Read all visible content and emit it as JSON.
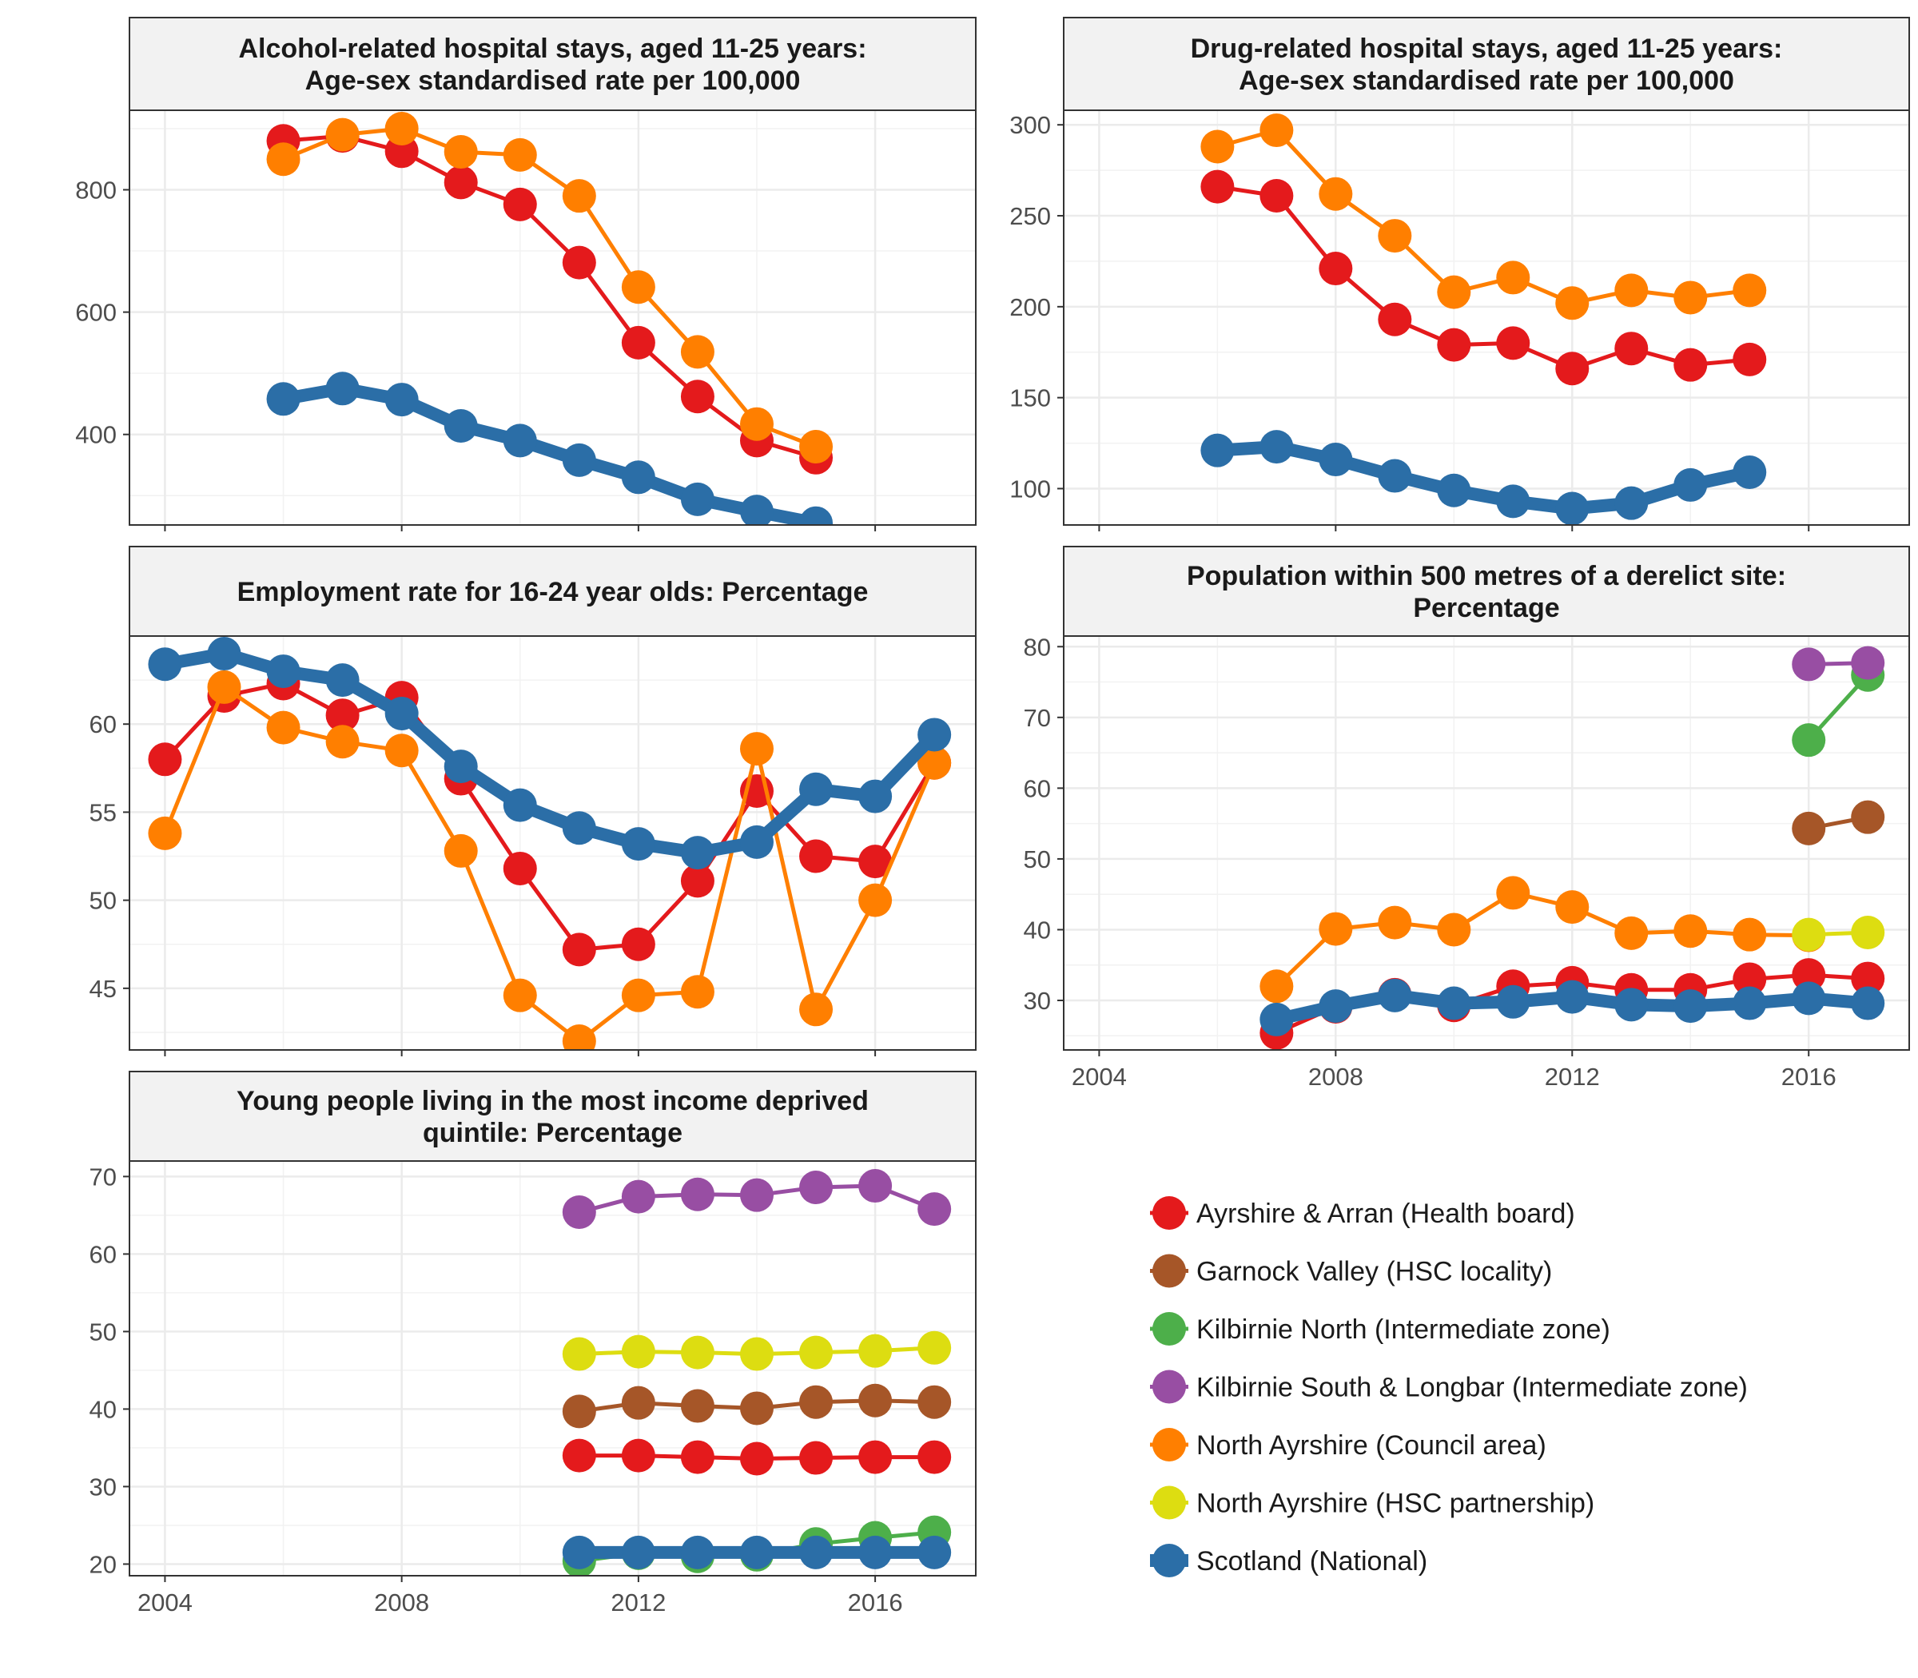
{
  "colors": {
    "Ayrshire & Arran (Health board)": "#e41a1c",
    "Garnock Valley (HSC locality)": "#a65628",
    "Kilbirnie North (Intermediate zone)": "#4daf4a",
    "Kilbirnie South & Longbar (Intermediate zone)": "#984ea3",
    "North Ayrshire (Council area)": "#ff7f00",
    "North Ayrshire (HSC partnership)": "#dddd11",
    "Scotland (National)": "#2b6ea7"
  },
  "legend": [
    "Ayrshire & Arran (Health board)",
    "Garnock Valley (HSC locality)",
    "Kilbirnie North (Intermediate zone)",
    "Kilbirnie South & Longbar (Intermediate zone)",
    "North Ayrshire (Council area)",
    "North Ayrshire (HSC partnership)",
    "Scotland (National)"
  ],
  "chart_data": [
    {
      "type": "line",
      "title": [
        "Alcohol-related hospital stays, aged 11-25 years:",
        "Age-sex standardised rate per 100,000"
      ],
      "xlim": [
        2003.4,
        2017.7
      ],
      "ylim": [
        252,
        930
      ],
      "xticks": [
        2004,
        2008,
        2012,
        2016
      ],
      "yticks": [
        400,
        600,
        800
      ],
      "show_x_labels": false,
      "series": [
        {
          "name": "Ayrshire & Arran (Health board)",
          "x": [
            2006,
            2007,
            2008,
            2009,
            2010,
            2011,
            2012,
            2013,
            2014,
            2015
          ],
          "values": [
            880,
            888,
            863,
            812,
            776,
            681,
            550,
            462,
            390,
            362
          ]
        },
        {
          "name": "North Ayrshire (Council area)",
          "x": [
            2006,
            2007,
            2008,
            2009,
            2010,
            2011,
            2012,
            2013,
            2014,
            2015
          ],
          "values": [
            850,
            890,
            900,
            862,
            857,
            790,
            641,
            535,
            417,
            380
          ]
        },
        {
          "name": "Scotland (National)",
          "x": [
            2006,
            2007,
            2008,
            2009,
            2010,
            2011,
            2012,
            2013,
            2014,
            2015
          ],
          "values": [
            458,
            475,
            457,
            414,
            390,
            358,
            330,
            294,
            274,
            255
          ]
        }
      ]
    },
    {
      "type": "line",
      "title": [
        "Drug-related hospital stays, aged 11-25 years:",
        "Age-sex standardised rate per 100,000"
      ],
      "xlim": [
        2003.4,
        2017.7
      ],
      "ylim": [
        80,
        308
      ],
      "xticks": [
        2004,
        2008,
        2012,
        2016
      ],
      "yticks": [
        100,
        150,
        200,
        250,
        300
      ],
      "show_x_labels": false,
      "series": [
        {
          "name": "Ayrshire & Arran (Health board)",
          "x": [
            2006,
            2007,
            2008,
            2009,
            2010,
            2011,
            2012,
            2013,
            2014,
            2015
          ],
          "values": [
            266,
            261,
            221,
            193,
            179,
            180,
            166,
            177,
            168,
            171
          ]
        },
        {
          "name": "North Ayrshire (Council area)",
          "x": [
            2006,
            2007,
            2008,
            2009,
            2010,
            2011,
            2012,
            2013,
            2014,
            2015
          ],
          "values": [
            288,
            297,
            262,
            239,
            208,
            216,
            202,
            209,
            205,
            209
          ]
        },
        {
          "name": "Scotland (National)",
          "x": [
            2006,
            2007,
            2008,
            2009,
            2010,
            2011,
            2012,
            2013,
            2014,
            2015
          ],
          "values": [
            121,
            123,
            116,
            107,
            99,
            93,
            89,
            92,
            102,
            109
          ]
        }
      ]
    },
    {
      "type": "line",
      "title": [
        "Employment rate for 16-24 year olds: Percentage"
      ],
      "xlim": [
        2003.4,
        2017.7
      ],
      "ylim": [
        41.5,
        65
      ],
      "xticks": [
        2004,
        2008,
        2012,
        2016
      ],
      "yticks": [
        45,
        50,
        55,
        60
      ],
      "show_x_labels": false,
      "series": [
        {
          "name": "Ayrshire & Arran (Health board)",
          "x": [
            2004,
            2005,
            2006,
            2007,
            2008,
            2009,
            2010,
            2011,
            2012,
            2013,
            2014,
            2015,
            2016,
            2017
          ],
          "values": [
            58.0,
            61.6,
            62.3,
            60.5,
            61.5,
            56.9,
            51.8,
            47.2,
            47.5,
            51.1,
            56.2,
            52.5,
            52.2,
            57.8
          ]
        },
        {
          "name": "North Ayrshire (Council area)",
          "x": [
            2004,
            2005,
            2006,
            2007,
            2008,
            2009,
            2010,
            2011,
            2012,
            2013,
            2014,
            2015,
            2016,
            2017
          ],
          "values": [
            53.8,
            62.1,
            59.8,
            59.0,
            58.5,
            52.8,
            44.6,
            42.0,
            44.6,
            44.8,
            58.6,
            43.8,
            50.0,
            57.8
          ]
        },
        {
          "name": "Scotland (National)",
          "x": [
            2004,
            2005,
            2006,
            2007,
            2008,
            2009,
            2010,
            2011,
            2012,
            2013,
            2014,
            2015,
            2016,
            2017
          ],
          "values": [
            63.4,
            64.0,
            63.0,
            62.5,
            60.6,
            57.6,
            55.4,
            54.1,
            53.2,
            52.7,
            53.3,
            56.3,
            55.9,
            59.4
          ]
        }
      ]
    },
    {
      "type": "line",
      "title": [
        "Population within 500 metres of a derelict site:",
        "Percentage"
      ],
      "xlim": [
        2003.4,
        2017.7
      ],
      "ylim": [
        23,
        81.5
      ],
      "xticks": [
        2004,
        2008,
        2012,
        2016
      ],
      "yticks": [
        30,
        40,
        50,
        60,
        70,
        80
      ],
      "show_x_labels": true,
      "series": [
        {
          "name": "North Ayrshire (Council area)",
          "x": [
            2007,
            2008,
            2009,
            2010,
            2011,
            2012,
            2013,
            2014,
            2015,
            2016
          ],
          "values": [
            32.0,
            40.1,
            41.0,
            40.0,
            45.2,
            43.2,
            39.5,
            39.8,
            39.3,
            39.2
          ]
        },
        {
          "name": "Ayrshire & Arran (Health board)",
          "x": [
            2007,
            2008,
            2009,
            2010,
            2011,
            2012,
            2013,
            2014,
            2015,
            2016,
            2017
          ],
          "values": [
            25.4,
            29.1,
            30.8,
            29.3,
            32.0,
            32.5,
            31.5,
            31.5,
            33.0,
            33.6,
            33.1
          ]
        },
        {
          "name": "Scotland (National)",
          "x": [
            2007,
            2008,
            2009,
            2010,
            2011,
            2012,
            2013,
            2014,
            2015,
            2016,
            2017
          ],
          "values": [
            27.3,
            29.2,
            30.7,
            29.6,
            29.8,
            30.5,
            29.4,
            29.2,
            29.6,
            30.3,
            29.6
          ]
        },
        {
          "name": "North Ayrshire (HSC partnership)",
          "x": [
            2016,
            2017
          ],
          "values": [
            39.3,
            39.6
          ]
        },
        {
          "name": "Garnock Valley (HSC locality)",
          "x": [
            2016,
            2017
          ],
          "values": [
            54.3,
            55.9
          ]
        },
        {
          "name": "Kilbirnie North (Intermediate zone)",
          "x": [
            2016,
            2017
          ],
          "values": [
            66.8,
            76.0
          ]
        },
        {
          "name": "Kilbirnie South & Longbar (Intermediate zone)",
          "x": [
            2016,
            2017
          ],
          "values": [
            77.5,
            77.7
          ]
        }
      ]
    },
    {
      "type": "line",
      "title": [
        "Young people living in the most income deprived",
        "quintile: Percentage"
      ],
      "xlim": [
        2003.4,
        2017.7
      ],
      "ylim": [
        18.5,
        72
      ],
      "xticks": [
        2004,
        2008,
        2012,
        2016
      ],
      "yticks": [
        20,
        30,
        40,
        50,
        60,
        70
      ],
      "show_x_labels": true,
      "series": [
        {
          "name": "Kilbirnie South & Longbar (Intermediate zone)",
          "x": [
            2011,
            2012,
            2013,
            2014,
            2015,
            2016,
            2017
          ],
          "values": [
            65.4,
            67.4,
            67.7,
            67.6,
            68.6,
            68.8,
            65.8
          ]
        },
        {
          "name": "North Ayrshire (HSC partnership)",
          "x": [
            2011,
            2012,
            2013,
            2014,
            2015,
            2016,
            2017
          ],
          "values": [
            47.1,
            47.4,
            47.3,
            47.1,
            47.3,
            47.5,
            47.9
          ]
        },
        {
          "name": "Garnock Valley (HSC locality)",
          "x": [
            2011,
            2012,
            2013,
            2014,
            2015,
            2016,
            2017
          ],
          "values": [
            39.7,
            40.8,
            40.4,
            40.1,
            40.9,
            41.1,
            40.9
          ]
        },
        {
          "name": "Ayrshire & Arran (Health board)",
          "x": [
            2011,
            2012,
            2013,
            2014,
            2015,
            2016,
            2017
          ],
          "values": [
            34.0,
            34.0,
            33.8,
            33.6,
            33.7,
            33.8,
            33.8
          ]
        },
        {
          "name": "Kilbirnie North (Intermediate zone)",
          "x": [
            2011,
            2012,
            2013,
            2014,
            2015,
            2016,
            2017
          ],
          "values": [
            20.4,
            21.4,
            21.0,
            21.2,
            22.6,
            23.4,
            24.1
          ]
        },
        {
          "name": "Scotland (National)",
          "x": [
            2011,
            2012,
            2013,
            2014,
            2015,
            2016,
            2017
          ],
          "values": [
            21.5,
            21.5,
            21.5,
            21.5,
            21.5,
            21.5,
            21.5
          ]
        }
      ]
    }
  ]
}
